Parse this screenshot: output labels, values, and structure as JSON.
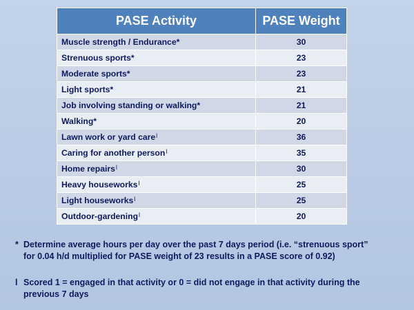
{
  "table": {
    "headers": [
      "PASE Activity",
      "PASE Weight"
    ],
    "rows": [
      {
        "activity": "Muscle strength / Endurance*",
        "mark": "",
        "weight": "30"
      },
      {
        "activity": "Strenuous sports*",
        "mark": "",
        "weight": "23"
      },
      {
        "activity": "Moderate sports*",
        "mark": "",
        "weight": "23"
      },
      {
        "activity": "Light sports*",
        "mark": "",
        "weight": "21"
      },
      {
        "activity": "Job  involving standing or walking*",
        "mark": "",
        "weight": "21"
      },
      {
        "activity": "Walking*",
        "mark": "",
        "weight": "20"
      },
      {
        "activity": "Lawn work or yard care",
        "mark": "l",
        "weight": "36"
      },
      {
        "activity": "Caring for another person",
        "mark": "l",
        "weight": "35"
      },
      {
        "activity": "Home repairs",
        "mark": "l",
        "weight": "30"
      },
      {
        "activity": "Heavy houseworks",
        "mark": "l",
        "weight": "25"
      },
      {
        "activity": "Light houseworks",
        "mark": "l",
        "weight": "25"
      },
      {
        "activity": "Outdoor-gardening",
        "mark": "l",
        "weight": "20"
      }
    ]
  },
  "footnotes": {
    "note1_symbol": "*",
    "note1_line1": "Determine average hours per day over the past 7 days period (i.e. “strenuous sport”",
    "note1_line2": "for 0.04 h/d multiplied for PASE weight of 23 results in a PASE score of  0.92)",
    "note2_symbol": "l",
    "note2_line1": "Scored 1 = engaged in that activity or 0 = did not engage in that activity during the",
    "note2_line2": "previous 7 days"
  },
  "colors": {
    "header_bg": "#4f81bd",
    "row_dark": "#d0d8e8",
    "row_light": "#e9edf4",
    "text": "#0e1a5e"
  }
}
